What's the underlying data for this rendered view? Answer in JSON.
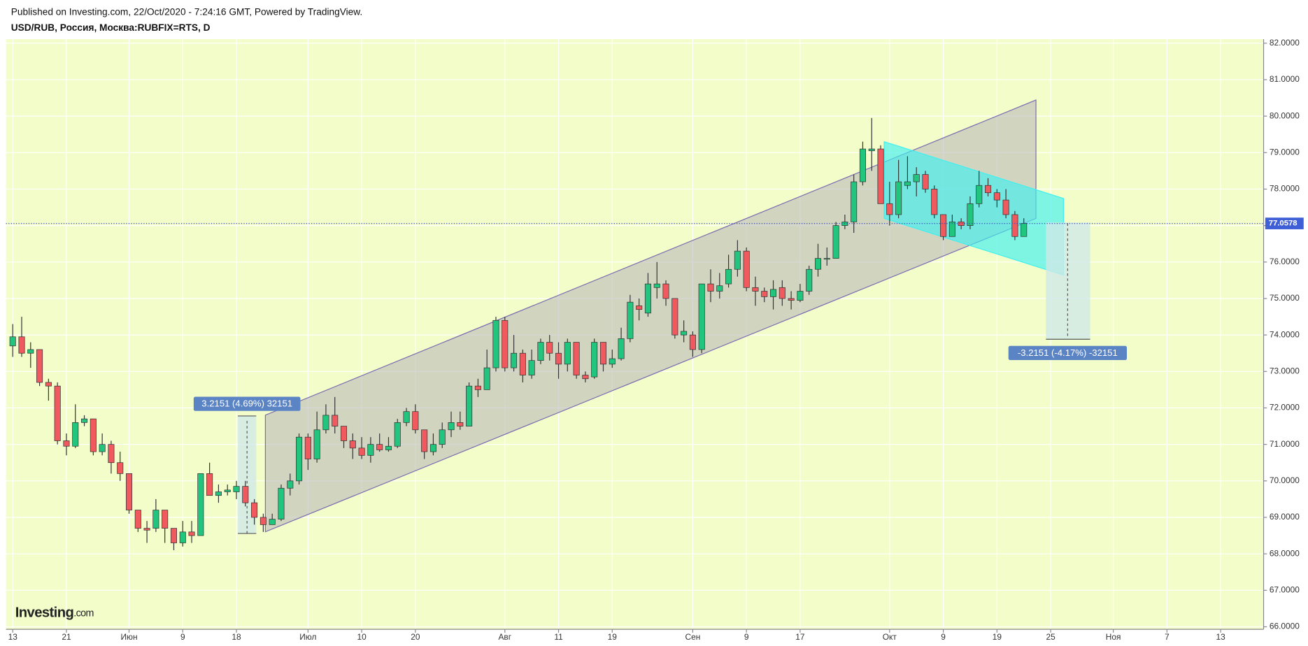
{
  "chart_data": {
    "type": "candlestick",
    "title": "Published on Investing.com, 22/Oct/2020 - 7:24:16 GMT, Powered by TradingView.",
    "subtitle": "USD/RUB, Россия, Москва:RUBFIX=RTS, D",
    "logo": [
      "Investing",
      ".com"
    ],
    "up_color": "#22c57d",
    "down_color": "#f0595e",
    "grid": true,
    "open": [
      73.7,
      73.95,
      73.5,
      73.6,
      72.7,
      72.6,
      71.1,
      70.95,
      71.6,
      71.7,
      70.8,
      71.0,
      70.5,
      70.2,
      69.2,
      68.7,
      68.7,
      69.2,
      68.7,
      68.3,
      68.6,
      68.5,
      70.2,
      69.6,
      69.7,
      69.7,
      69.85,
      69.4,
      69.0,
      68.8,
      68.95,
      69.8,
      70.0,
      71.2,
      70.6,
      71.4,
      71.8,
      71.5,
      71.1,
      70.9,
      70.7,
      71.0,
      70.85,
      70.95,
      71.6,
      71.9,
      71.4,
      70.8,
      71.0,
      71.4,
      71.6,
      71.5,
      72.6,
      72.5,
      73.1,
      74.4,
      73.1,
      73.5,
      72.9,
      73.3,
      73.8,
      73.5,
      73.2,
      73.8,
      72.9,
      72.85,
      73.8,
      73.2,
      73.35,
      73.9,
      74.8,
      74.6,
      75.3,
      75.4,
      75.0,
      74.0,
      74.0,
      73.6,
      75.4,
      75.2,
      75.4,
      75.8,
      76.3,
      75.3,
      75.2,
      75.05,
      75.3,
      75.0,
      74.95,
      75.2,
      75.8,
      76.1,
      76.1,
      77.0,
      77.1,
      78.2,
      79.05,
      79.1,
      77.6,
      77.3,
      78.1,
      78.2,
      78.4,
      78.0,
      77.3,
      76.7,
      77.1,
      77.0,
      77.6,
      78.1,
      77.9,
      77.7,
      77.3,
      76.7
    ],
    "high": [
      74.3,
      74.5,
      73.8,
      73.6,
      72.8,
      72.7,
      71.3,
      72.1,
      71.8,
      71.7,
      71.3,
      71.1,
      70.8,
      70.2,
      69.2,
      68.9,
      69.5,
      69.2,
      68.7,
      68.9,
      68.9,
      70.2,
      70.5,
      69.9,
      69.9,
      70.0,
      70.0,
      69.5,
      69.1,
      69.1,
      69.9,
      70.2,
      71.3,
      71.3,
      71.9,
      72.1,
      72.3,
      71.5,
      71.3,
      71.2,
      71.2,
      71.3,
      71.2,
      71.7,
      72.0,
      72.1,
      71.4,
      71.3,
      71.6,
      71.9,
      71.9,
      72.7,
      72.8,
      73.6,
      74.5,
      74.5,
      74.0,
      73.6,
      73.6,
      73.9,
      74.0,
      73.8,
      73.9,
      73.8,
      73.0,
      73.9,
      73.8,
      73.6,
      74.2,
      75.1,
      75.0,
      75.7,
      76.0,
      75.5,
      75.0,
      74.4,
      74.1,
      75.4,
      75.8,
      75.7,
      76.2,
      76.6,
      76.4,
      75.6,
      75.3,
      75.5,
      75.5,
      75.2,
      75.4,
      75.9,
      76.5,
      76.4,
      77.1,
      77.3,
      78.4,
      79.3,
      79.95,
      79.2,
      78.2,
      78.8,
      78.9,
      78.6,
      78.5,
      78.1,
      77.3,
      77.3,
      77.2,
      77.8,
      78.5,
      78.3,
      78.0,
      78.0,
      77.4,
      77.2
    ],
    "low": [
      73.4,
      73.4,
      73.1,
      72.6,
      72.2,
      71.0,
      70.7,
      70.9,
      71.5,
      70.7,
      70.7,
      70.2,
      70.0,
      69.1,
      68.6,
      68.3,
      68.6,
      68.3,
      68.1,
      68.2,
      68.3,
      68.5,
      69.6,
      69.4,
      69.6,
      69.5,
      69.3,
      68.8,
      68.6,
      68.8,
      68.9,
      69.6,
      69.9,
      70.3,
      70.5,
      71.3,
      71.3,
      70.9,
      70.6,
      70.6,
      70.5,
      70.8,
      70.8,
      70.9,
      71.5,
      71.3,
      70.6,
      70.7,
      70.9,
      71.2,
      71.4,
      71.5,
      72.3,
      72.5,
      73.0,
      73.0,
      73.0,
      72.7,
      72.8,
      73.2,
      73.3,
      72.8,
      73.0,
      72.8,
      72.7,
      72.8,
      73.0,
      73.1,
      73.3,
      73.8,
      74.4,
      74.5,
      75.0,
      74.8,
      73.9,
      73.8,
      73.4,
      73.5,
      74.9,
      75.0,
      75.3,
      75.6,
      75.2,
      74.8,
      74.9,
      74.7,
      74.8,
      74.7,
      74.9,
      75.1,
      75.6,
      75.9,
      76.1,
      76.9,
      76.8,
      78.1,
      78.5,
      77.6,
      77.0,
      77.2,
      78.0,
      77.8,
      77.9,
      77.2,
      76.6,
      76.7,
      76.9,
      76.9,
      77.5,
      77.8,
      77.5,
      77.2,
      76.6,
      76.7
    ],
    "close": [
      73.95,
      73.5,
      73.6,
      72.7,
      72.6,
      71.1,
      70.95,
      71.6,
      71.7,
      70.8,
      71.0,
      70.5,
      70.2,
      69.2,
      68.7,
      68.65,
      69.2,
      68.7,
      68.3,
      68.6,
      68.5,
      70.2,
      69.6,
      69.7,
      69.75,
      69.85,
      69.4,
      69.0,
      68.8,
      68.95,
      69.8,
      70.0,
      71.2,
      70.6,
      71.4,
      71.8,
      71.5,
      71.1,
      70.9,
      70.7,
      71.0,
      70.85,
      70.95,
      71.6,
      71.9,
      71.4,
      70.8,
      71.0,
      71.4,
      71.6,
      71.5,
      72.6,
      72.5,
      73.1,
      74.4,
      73.1,
      73.5,
      72.9,
      73.3,
      73.8,
      73.5,
      73.2,
      73.8,
      72.9,
      72.8,
      73.8,
      73.2,
      73.35,
      73.9,
      74.9,
      74.7,
      75.4,
      75.4,
      75.0,
      74.0,
      74.1,
      73.6,
      75.4,
      75.2,
      75.35,
      75.8,
      76.3,
      75.3,
      75.2,
      75.05,
      75.25,
      75.0,
      74.95,
      75.2,
      75.8,
      76.1,
      76.1,
      77.0,
      77.1,
      78.2,
      79.1,
      79.1,
      77.6,
      77.3,
      78.2,
      78.2,
      78.4,
      78.0,
      77.3,
      76.7,
      77.1,
      77.0,
      77.6,
      78.1,
      77.9,
      77.7,
      77.3,
      76.7,
      77.06
    ],
    "last_price": 77.0578,
    "annotations": [
      "3.2151 (4.69%) 32151",
      "-3.2151 (-4.17%) -32151"
    ],
    "ylim": [
      65.93,
      82.11
    ],
    "yticks": [
      {
        "value": 66,
        "label": "66.0000"
      },
      {
        "value": 67,
        "label": "67.0000"
      },
      {
        "value": 68,
        "label": "68.0000"
      },
      {
        "value": 69,
        "label": "69.0000"
      },
      {
        "value": 70,
        "label": "70.0000"
      },
      {
        "value": 71,
        "label": "71.0000"
      },
      {
        "value": 72,
        "label": "72.0000"
      },
      {
        "value": 73,
        "label": "73.0000"
      },
      {
        "value": 74,
        "label": "74.0000"
      },
      {
        "value": 75,
        "label": "75.0000"
      },
      {
        "value": 76,
        "label": "76.0000"
      },
      {
        "value": 77,
        "label": "77.0000"
      },
      {
        "value": 78,
        "label": "78.0000"
      },
      {
        "value": 79,
        "label": "79.0000"
      },
      {
        "value": 80,
        "label": "80.0000"
      },
      {
        "value": 81,
        "label": "81.0000"
      },
      {
        "value": 82,
        "label": "82.0000"
      }
    ],
    "xlim": [
      -0.75,
      139.8
    ],
    "xticks": [
      {
        "value": 0,
        "label": "13"
      },
      {
        "value": 6,
        "label": "21"
      },
      {
        "value": 13,
        "label": "Июн"
      },
      {
        "value": 19,
        "label": "9"
      },
      {
        "value": 25,
        "label": "18"
      },
      {
        "value": 33,
        "label": "Июл"
      },
      {
        "value": 39,
        "label": "10"
      },
      {
        "value": 45,
        "label": "20"
      },
      {
        "value": 55,
        "label": "Авг"
      },
      {
        "value": 61,
        "label": "11"
      },
      {
        "value": 67,
        "label": "19"
      },
      {
        "value": 76,
        "label": "Сен"
      },
      {
        "value": 82,
        "label": "9"
      },
      {
        "value": 88,
        "label": "17"
      },
      {
        "value": 98,
        "label": "Окт"
      },
      {
        "value": 104,
        "label": "9"
      },
      {
        "value": 110,
        "label": "19"
      },
      {
        "value": 116,
        "label": "25"
      },
      {
        "value": 123,
        "label": "Ноя"
      },
      {
        "value": 129,
        "label": "7"
      },
      {
        "value": 135,
        "label": "13"
      }
    ]
  }
}
